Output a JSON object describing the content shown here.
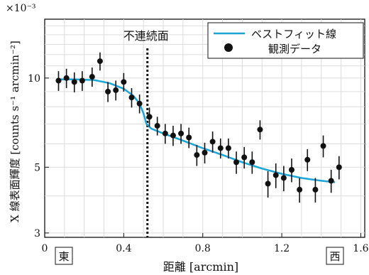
{
  "chart_data": {
    "type": "scatter",
    "xlabel": "距離 [arcmin]",
    "ylabel": "X 線表面輝度 [counts s⁻¹ arcmin⁻²]",
    "y_scale_label": "×10⁻³",
    "y_scale": "log",
    "xlim": [
      0,
      1.62
    ],
    "ylim": [
      2.9,
      15.8
    ],
    "x_ticks": [
      0,
      0.4,
      0.8,
      1.2,
      1.6
    ],
    "x_tick_labels": [
      "0",
      "0.4",
      "0.8",
      "1.2",
      "1.6"
    ],
    "y_ticks": [
      3,
      5,
      10
    ],
    "y_tick_labels": [
      "3",
      "5",
      "10"
    ],
    "grid": true,
    "legend_position": "top-right",
    "annotation": {
      "text": "不連続面",
      "x": 0.52
    },
    "corner_labels": {
      "left": "東",
      "right": "西"
    },
    "colors": {
      "fit": "#19a5d6",
      "points": "#111111"
    },
    "series": [
      {
        "name": "観測データ",
        "kind": "points",
        "points": [
          {
            "x": 0.07,
            "y": 9.8,
            "err": 0.75
          },
          {
            "x": 0.11,
            "y": 10.0,
            "err": 0.75
          },
          {
            "x": 0.15,
            "y": 9.7,
            "err": 0.75
          },
          {
            "x": 0.19,
            "y": 9.8,
            "err": 0.75
          },
          {
            "x": 0.24,
            "y": 10.1,
            "err": 0.75
          },
          {
            "x": 0.28,
            "y": 11.4,
            "err": 0.8
          },
          {
            "x": 0.32,
            "y": 9.0,
            "err": 0.7
          },
          {
            "x": 0.36,
            "y": 9.1,
            "err": 0.7
          },
          {
            "x": 0.4,
            "y": 9.7,
            "err": 0.7
          },
          {
            "x": 0.44,
            "y": 8.6,
            "err": 0.65
          },
          {
            "x": 0.48,
            "y": 8.2,
            "err": 0.6
          },
          {
            "x": 0.53,
            "y": 7.4,
            "err": 0.55
          },
          {
            "x": 0.57,
            "y": 6.9,
            "err": 0.5
          },
          {
            "x": 0.61,
            "y": 6.5,
            "err": 0.5
          },
          {
            "x": 0.65,
            "y": 6.4,
            "err": 0.5
          },
          {
            "x": 0.69,
            "y": 6.5,
            "err": 0.5
          },
          {
            "x": 0.73,
            "y": 6.3,
            "err": 0.5
          },
          {
            "x": 0.77,
            "y": 5.5,
            "err": 0.45
          },
          {
            "x": 0.81,
            "y": 5.6,
            "err": 0.45
          },
          {
            "x": 0.85,
            "y": 6.1,
            "err": 0.5
          },
          {
            "x": 0.89,
            "y": 5.8,
            "err": 0.45
          },
          {
            "x": 0.93,
            "y": 5.8,
            "err": 0.45
          },
          {
            "x": 0.97,
            "y": 5.2,
            "err": 0.45
          },
          {
            "x": 1.01,
            "y": 5.4,
            "err": 0.45
          },
          {
            "x": 1.05,
            "y": 5.2,
            "err": 0.45
          },
          {
            "x": 1.09,
            "y": 6.7,
            "err": 0.5
          },
          {
            "x": 1.13,
            "y": 4.4,
            "err": 0.45
          },
          {
            "x": 1.17,
            "y": 4.7,
            "err": 0.45
          },
          {
            "x": 1.21,
            "y": 4.6,
            "err": 0.45
          },
          {
            "x": 1.25,
            "y": 4.9,
            "err": 0.45
          },
          {
            "x": 1.29,
            "y": 4.2,
            "err": 0.4
          },
          {
            "x": 1.33,
            "y": 5.3,
            "err": 0.45
          },
          {
            "x": 1.37,
            "y": 4.2,
            "err": 0.4
          },
          {
            "x": 1.41,
            "y": 5.9,
            "err": 0.5
          },
          {
            "x": 1.45,
            "y": 4.5,
            "err": 0.4
          },
          {
            "x": 1.49,
            "y": 5.0,
            "err": 0.45
          }
        ]
      },
      {
        "name": "ベストフィット線",
        "kind": "line",
        "points": [
          [
            0.07,
            9.9
          ],
          [
            0.15,
            9.9
          ],
          [
            0.25,
            9.85
          ],
          [
            0.33,
            9.6
          ],
          [
            0.4,
            9.2
          ],
          [
            0.45,
            8.7
          ],
          [
            0.48,
            8.2
          ],
          [
            0.5,
            7.6
          ],
          [
            0.515,
            7.0
          ],
          [
            0.54,
            6.75
          ],
          [
            0.6,
            6.5
          ],
          [
            0.7,
            6.15
          ],
          [
            0.8,
            5.8
          ],
          [
            0.9,
            5.5
          ],
          [
            1.0,
            5.2
          ],
          [
            1.1,
            4.95
          ],
          [
            1.2,
            4.75
          ],
          [
            1.3,
            4.6
          ],
          [
            1.4,
            4.5
          ],
          [
            1.47,
            4.45
          ]
        ]
      }
    ]
  }
}
